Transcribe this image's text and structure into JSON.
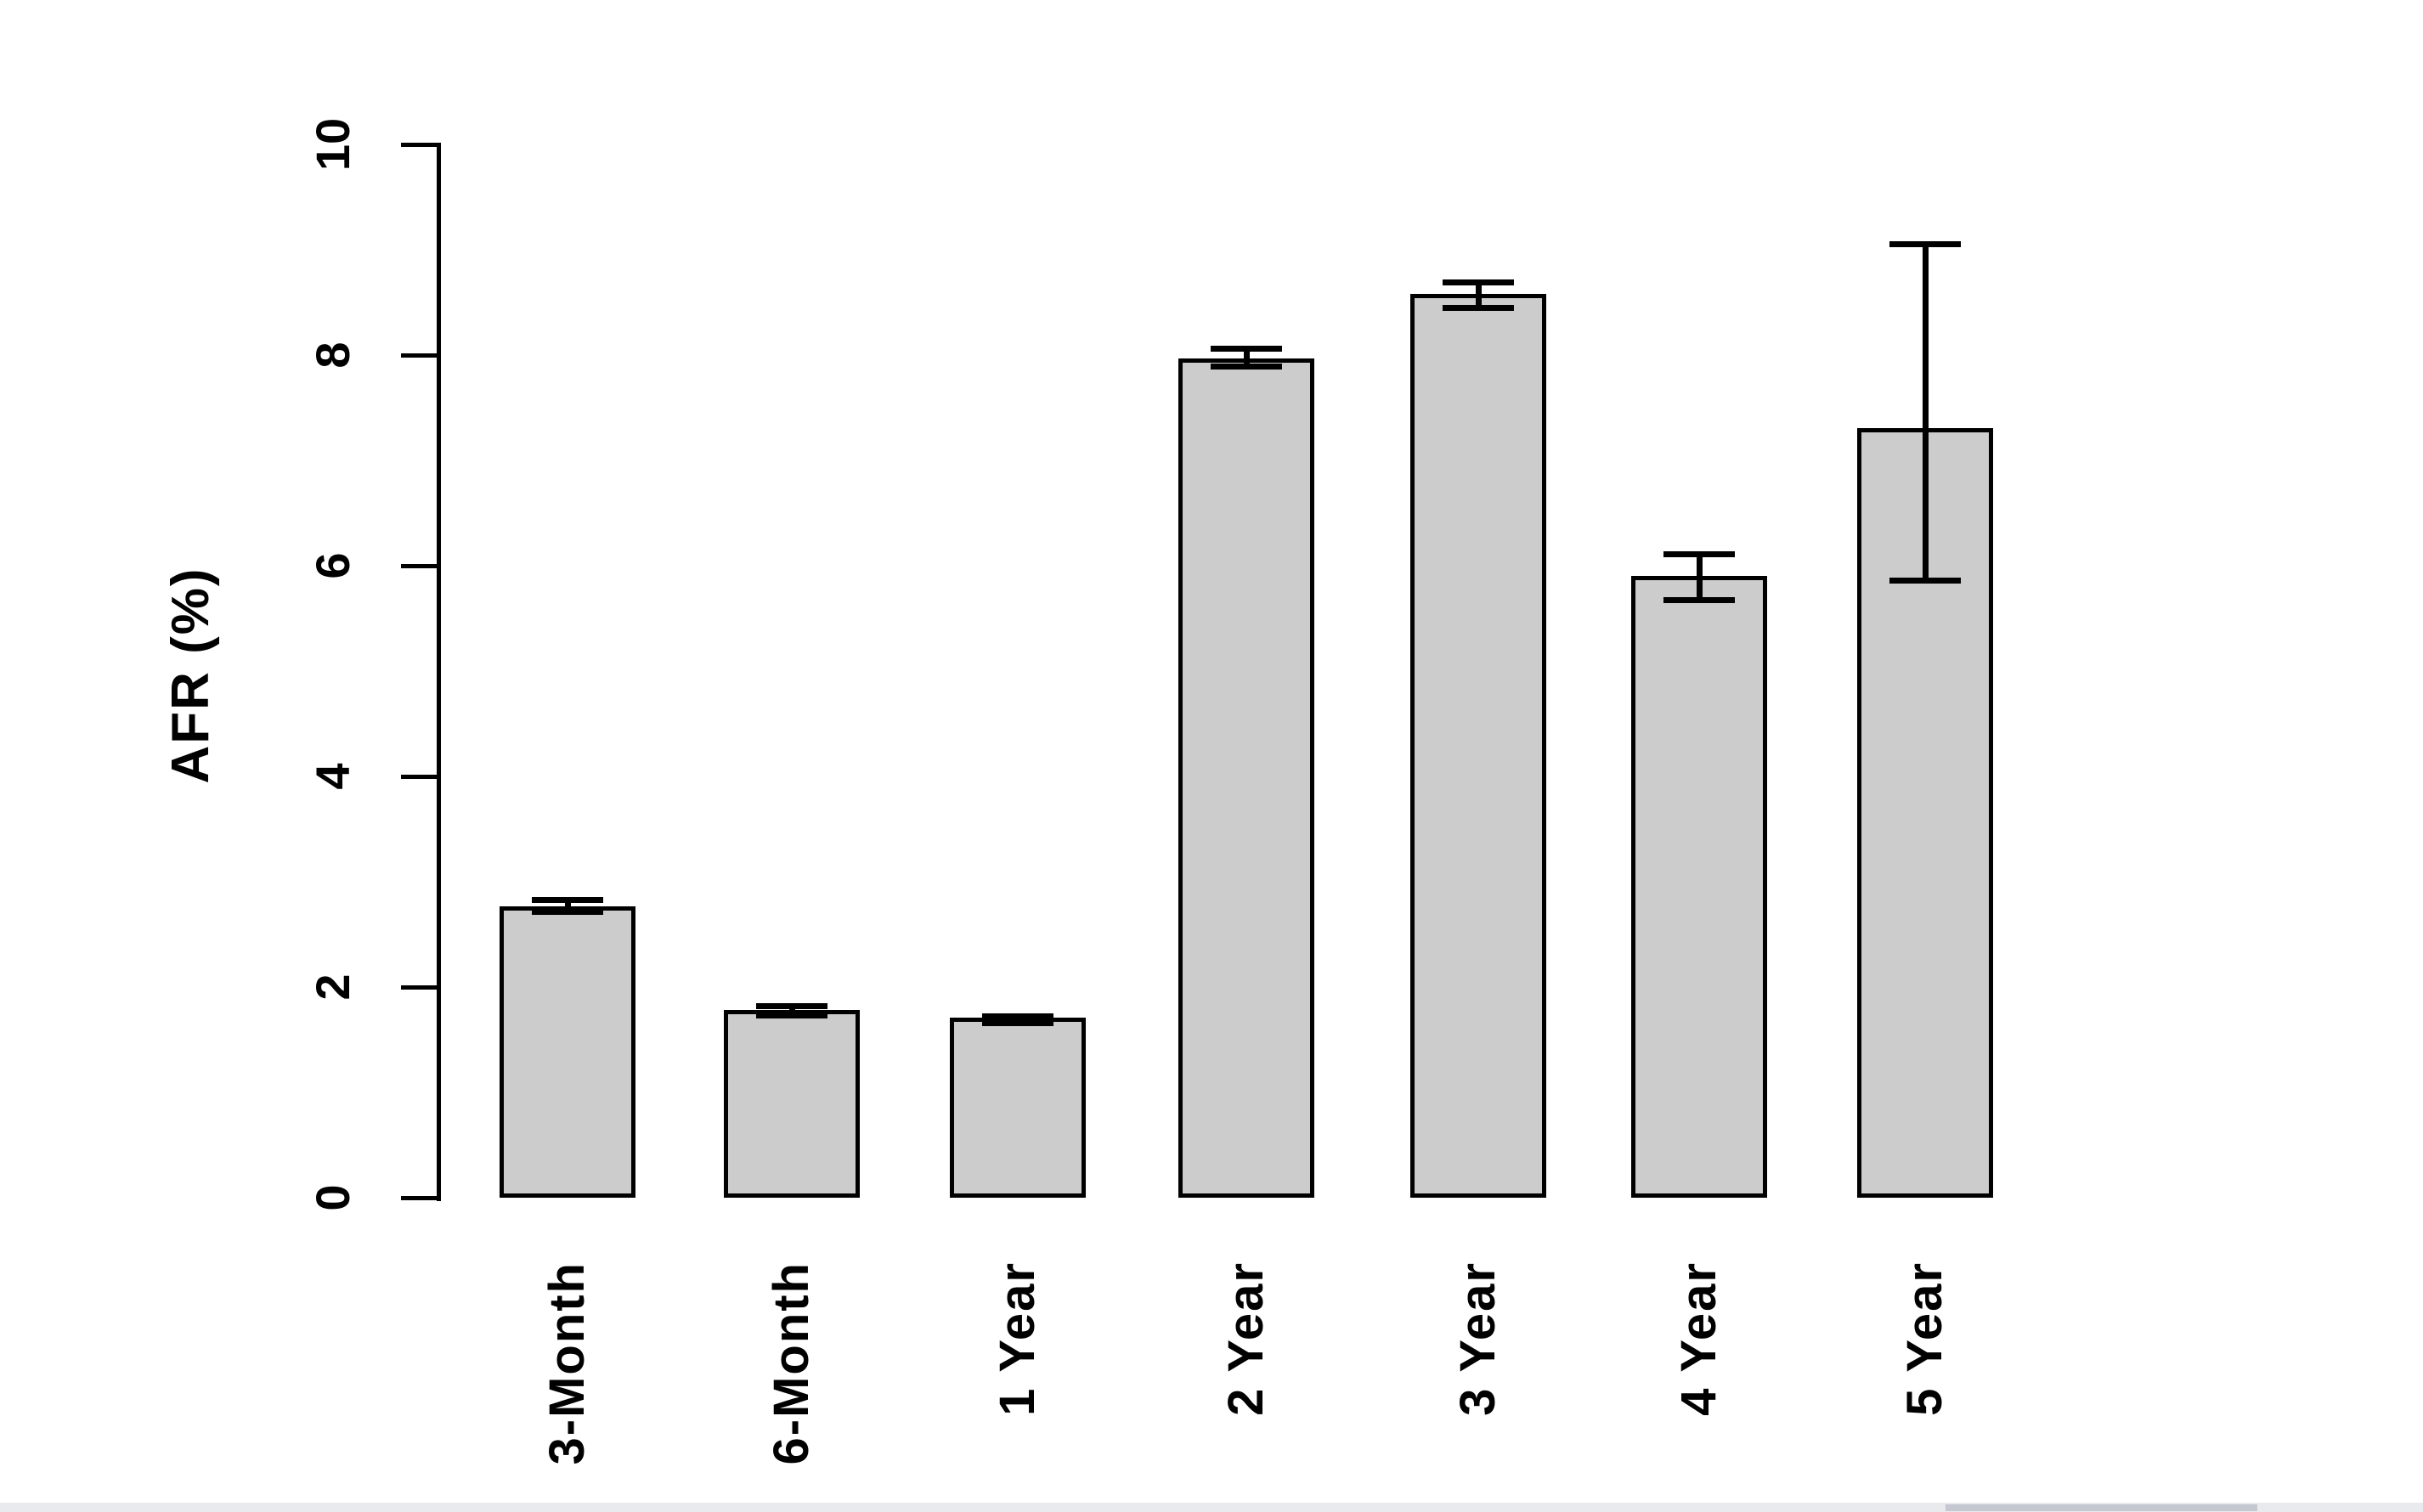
{
  "chart_data": {
    "type": "bar",
    "title": "",
    "xlabel": "",
    "ylabel": "AFR (%)",
    "categories": [
      "3-Month",
      "6-Month",
      "1 Year",
      "2 Year",
      "3 Year",
      "4 Year",
      "5 Year"
    ],
    "values": [
      2.77,
      1.78,
      1.71,
      7.97,
      8.58,
      5.9,
      7.31
    ],
    "error_low": [
      2.71,
      1.73,
      1.66,
      7.89,
      8.45,
      5.67,
      5.86
    ],
    "error_high": [
      2.83,
      1.82,
      1.72,
      8.06,
      8.69,
      6.11,
      9.05
    ],
    "yticks": [
      0,
      2,
      4,
      6,
      8,
      10
    ],
    "ylim": [
      0,
      10
    ],
    "grid": false,
    "legend_position": "none",
    "bar_color": "#cccccc",
    "bar_border_color": "#000000",
    "axis_color": "#000000"
  },
  "scrollbar": {
    "track_color": "#e9eaee",
    "thumb_color": "#c5c8d0"
  }
}
